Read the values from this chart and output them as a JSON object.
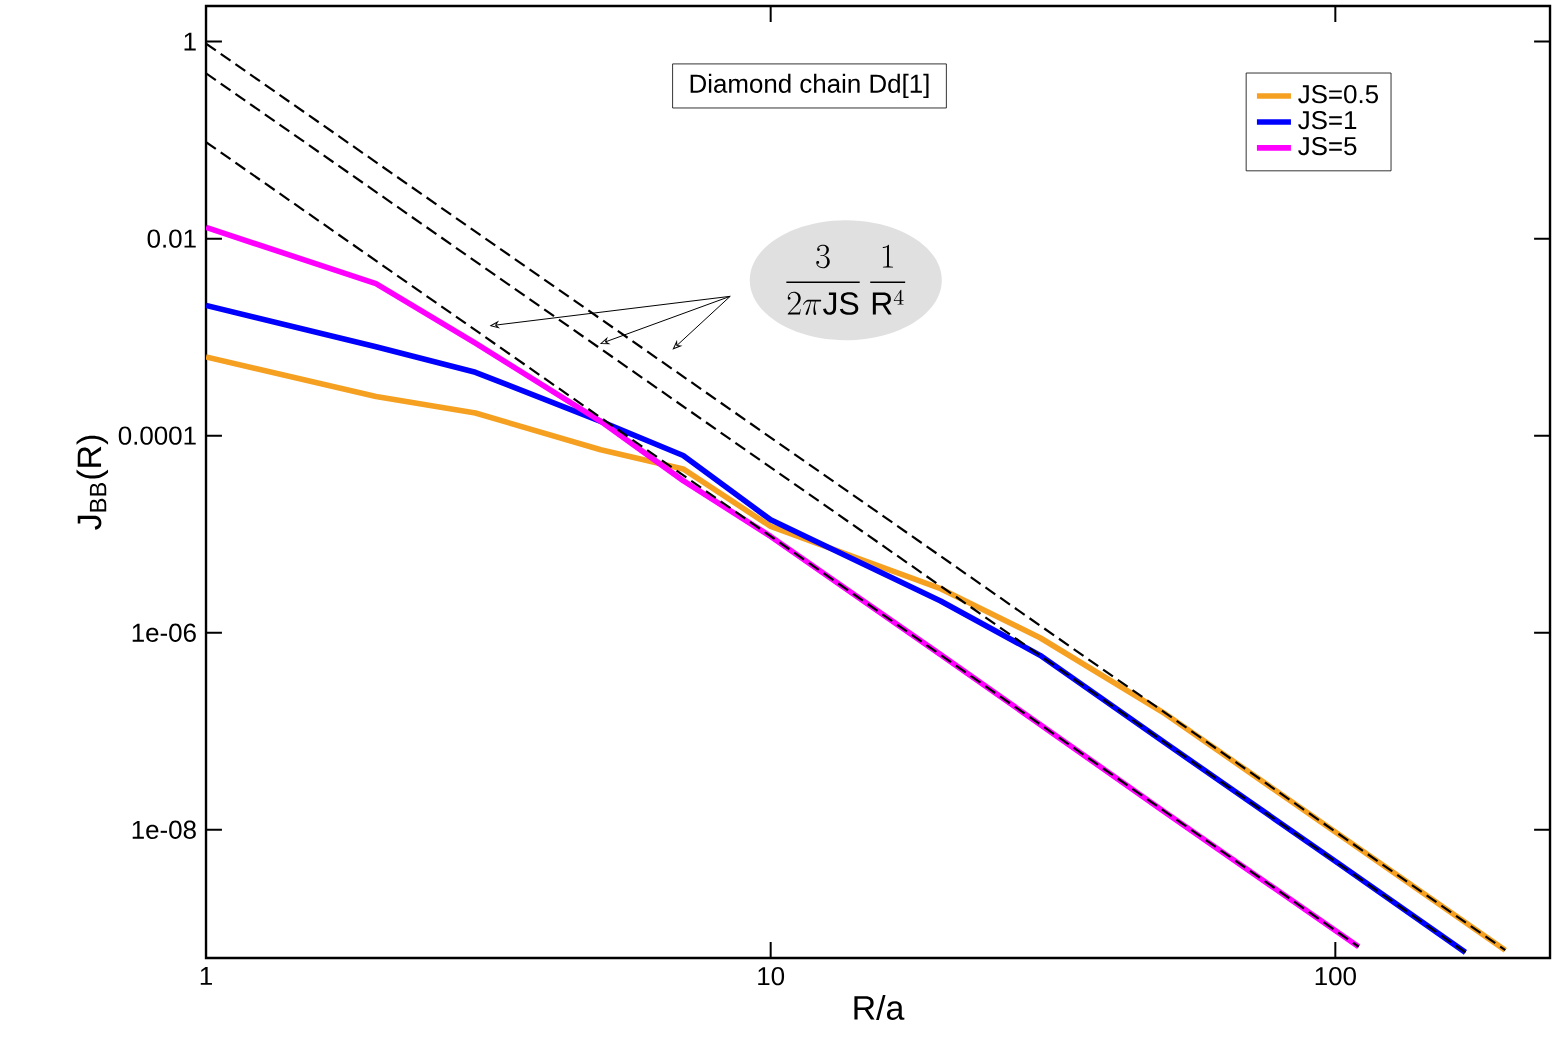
{
  "chart_data": {
    "type": "line",
    "xlabel": "R/a",
    "ylabel": "J$_{BB}$(R)",
    "log": "xy",
    "xlim": [
      1,
      240
    ],
    "ylim": [
      5e-10,
      2.3
    ],
    "xticks": [
      1,
      10,
      100
    ],
    "yticks": [
      1,
      0.01,
      0.0001,
      {
        "value": 1e-06,
        "label": "1e-06"
      },
      {
        "value": 1e-08,
        "label": "1e-08"
      }
    ],
    "legend": "top right",
    "grid": false,
    "marker": "none",
    "annotations": [
      "Diamond chain Dd[1]",
      "\\frac{3}{2\\pi \\mathrm{JS}}\\,\\frac{1}{\\mathrm{R}^{4}}"
    ],
    "series": [
      {
        "name": "JS=0.5",
        "color": "#f5a020",
        "x": [
          1,
          2,
          3,
          5,
          7,
          10,
          20,
          30,
          50,
          100,
          200
        ],
        "values": [
          0.00063,
          0.00025,
          0.00017,
          7.2e-05,
          4.6e-05,
          1.2e-05,
          2.8e-06,
          8.9e-07,
          1.5e-07,
          9.5e-09,
          6e-10
        ]
      },
      {
        "name": "JS=1",
        "color": "#0000ff",
        "x": [
          1,
          2,
          3,
          5,
          7,
          10,
          20,
          30,
          50,
          100,
          170
        ],
        "values": [
          0.0021,
          0.0008,
          0.00044,
          0.00014,
          6.3e-05,
          1.4e-05,
          2.1e-06,
          5.9e-07,
          7.6e-08,
          4.8e-09,
          5.7e-10
        ]
      },
      {
        "name": "JS=5",
        "color": "#ff00ff",
        "x": [
          1,
          2,
          3,
          5,
          7,
          10,
          20,
          50,
          110
        ],
        "values": [
          0.013,
          0.0035,
          0.00087,
          0.00014,
          3.5e-05,
          9.5e-06,
          6e-07,
          1.5e-08,
          6.5e-10
        ]
      },
      {
        "color": "#000000",
        "line_style": "dashed",
        "x": [
          1,
          200
        ],
        "values": [
          0.955,
          6e-10
        ]
      },
      {
        "color": "#000000",
        "line_style": "dashed",
        "x": [
          1,
          170
        ],
        "values": [
          0.477,
          5.7e-10
        ]
      },
      {
        "color": "#000000",
        "line_style": "dashed",
        "x": [
          1,
          110
        ],
        "values": [
          0.0955,
          6.5e-10
        ]
      }
    ]
  }
}
